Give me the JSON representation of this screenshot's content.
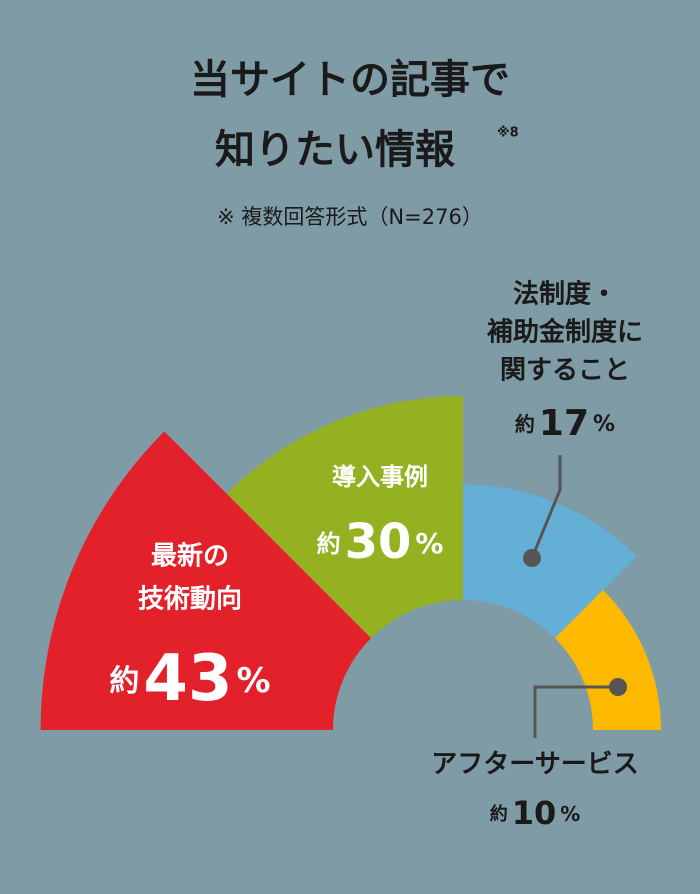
{
  "chart_data": {
    "type": "radial-bar",
    "title": [
      "当サイトの記事で",
      "知りたい情報"
    ],
    "title_note": "※8",
    "subtitle": "※ 複数回答形式（N=276）",
    "categories": [
      [
        "最新の",
        "技術動向"
      ],
      [
        "導入事例"
      ],
      [
        "法制度・",
        "補助金制度に",
        "関すること"
      ],
      [
        "アフターサービス"
      ]
    ],
    "values": [
      43,
      30,
      17,
      10
    ],
    "value_prefix": "約",
    "value_unit": "%",
    "colors": [
      "#e2212b",
      "#94b122",
      "#64afd6",
      "#fcb900"
    ]
  }
}
